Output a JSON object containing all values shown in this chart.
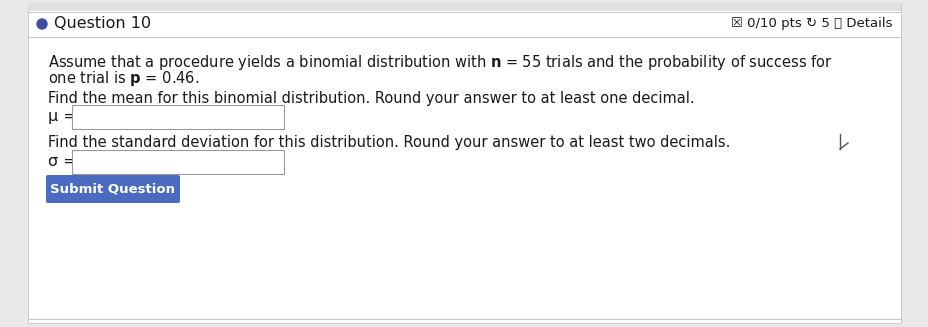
{
  "bg_color": "#e8e8e8",
  "card_color": "#f5f5f5",
  "inner_color": "#ffffff",
  "question_label": "Question 10",
  "dot_color": "#3d4fa0",
  "score_text": "☒ 0/10 pts ↻ 5 ⓘ Details",
  "divider_color": "#c8c8c8",
  "body_line1": "Assume that a procedure yields a binomial distribution with ",
  "body_line1b": " = 55 trials and the probability of success for",
  "body_line2a": "one trial is ",
  "body_line2b": " = 0.46.",
  "mean_instruction": "Find the mean for this binomial distribution. Round your answer to at least one decimal.",
  "mu_label": "μ =",
  "std_instruction": "Find the standard deviation for this distribution. Round your answer to at least two decimals.",
  "sigma_label": "σ =",
  "button_text": "Submit Question",
  "button_color": "#4a6bbf",
  "button_text_color": "#ffffff",
  "text_color": "#1a1a1a",
  "text_color_light": "#333333",
  "fs_header": 11.5,
  "fs_body": 10.5,
  "fs_label": 11.5
}
